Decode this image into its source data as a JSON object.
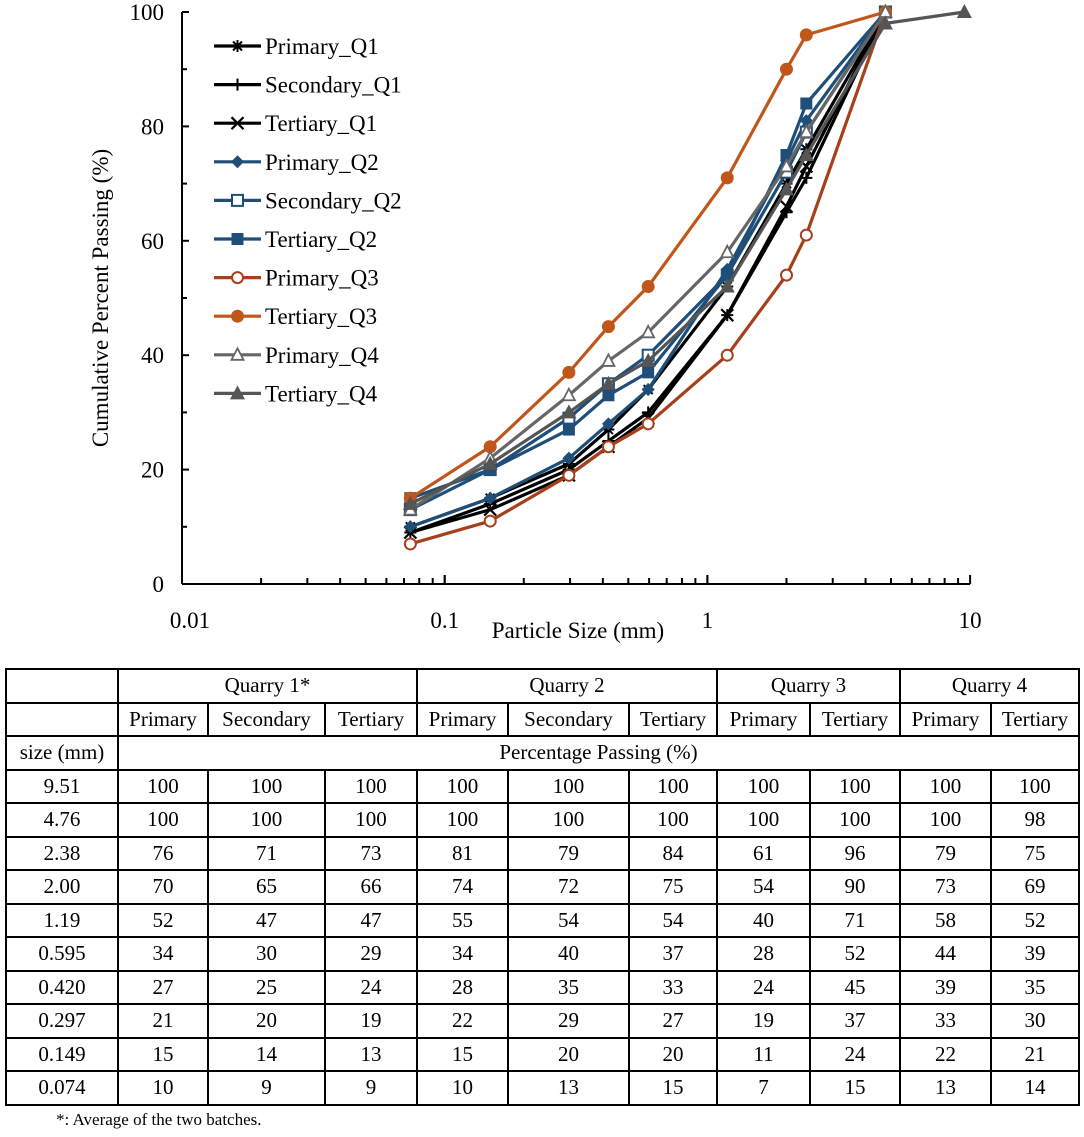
{
  "chart_data": {
    "type": "line",
    "xlabel": "Particle Size (mm)",
    "ylabel": "Cumulative Percent Passing (%)",
    "x_scale": "log",
    "xlim": [
      0.01,
      10
    ],
    "ylim": [
      0,
      100
    ],
    "x_ticks": [
      "0.01",
      "0.1",
      "1",
      "10"
    ],
    "y_ticks": [
      "0",
      "20",
      "40",
      "60",
      "80",
      "100"
    ],
    "grid": false,
    "legend_position": "top-left",
    "series": [
      {
        "name": "Primary_Q1",
        "color": "#000000",
        "marker": "asterisk",
        "x": [
          4.76,
          2.38,
          2.0,
          1.19,
          0.595,
          0.42,
          0.297,
          0.149,
          0.074
        ],
        "y": [
          100,
          76,
          70,
          52,
          34,
          27,
          21,
          15,
          10
        ]
      },
      {
        "name": "Secondary_Q1",
        "color": "#000000",
        "marker": "plus",
        "x": [
          4.76,
          2.38,
          2.0,
          1.19,
          0.595,
          0.42,
          0.297,
          0.149,
          0.074
        ],
        "y": [
          100,
          71,
          65,
          47,
          30,
          25,
          20,
          14,
          9
        ]
      },
      {
        "name": "Tertiary_Q1",
        "color": "#000000",
        "marker": "cross",
        "x": [
          4.76,
          2.38,
          2.0,
          1.19,
          0.595,
          0.42,
          0.297,
          0.149,
          0.074
        ],
        "y": [
          100,
          73,
          66,
          47,
          29,
          24,
          19,
          13,
          9
        ]
      },
      {
        "name": "Primary_Q2",
        "color": "#1f4e79",
        "marker": "diamond",
        "x": [
          4.76,
          2.38,
          2.0,
          1.19,
          0.595,
          0.42,
          0.297,
          0.149,
          0.074
        ],
        "y": [
          100,
          81,
          74,
          55,
          34,
          28,
          22,
          15,
          10
        ]
      },
      {
        "name": "Secondary_Q2",
        "color": "#1f4e79",
        "marker": "square-open",
        "x": [
          4.76,
          2.38,
          2.0,
          1.19,
          0.595,
          0.42,
          0.297,
          0.149,
          0.074
        ],
        "y": [
          100,
          79,
          72,
          54,
          40,
          35,
          29,
          20,
          13
        ]
      },
      {
        "name": "Tertiary_Q2",
        "color": "#1f4e79",
        "marker": "square",
        "x": [
          4.76,
          2.38,
          2.0,
          1.19,
          0.595,
          0.42,
          0.297,
          0.149,
          0.074
        ],
        "y": [
          100,
          84,
          75,
          54,
          37,
          33,
          27,
          20,
          15
        ]
      },
      {
        "name": "Primary_Q3",
        "color": "#a5401a",
        "marker": "circle-open",
        "x": [
          4.76,
          2.38,
          2.0,
          1.19,
          0.595,
          0.42,
          0.297,
          0.149,
          0.074
        ],
        "y": [
          100,
          61,
          54,
          40,
          28,
          24,
          19,
          11,
          7
        ]
      },
      {
        "name": "Tertiary_Q3",
        "color": "#c0561a",
        "marker": "circle",
        "x": [
          4.76,
          2.38,
          2.0,
          1.19,
          0.595,
          0.42,
          0.297,
          0.149,
          0.074
        ],
        "y": [
          100,
          96,
          90,
          71,
          52,
          45,
          37,
          24,
          15
        ]
      },
      {
        "name": "Primary_Q4",
        "color": "#666666",
        "marker": "triangle-open",
        "x": [
          4.76,
          2.38,
          2.0,
          1.19,
          0.595,
          0.42,
          0.297,
          0.149,
          0.074
        ],
        "y": [
          100,
          79,
          73,
          58,
          44,
          39,
          33,
          22,
          13
        ]
      },
      {
        "name": "Tertiary_Q4",
        "color": "#555555",
        "marker": "triangle",
        "x": [
          9.51,
          4.76,
          2.38,
          2.0,
          1.19,
          0.595,
          0.42,
          0.297,
          0.149,
          0.074
        ],
        "y": [
          100,
          98,
          75,
          69,
          52,
          39,
          35,
          30,
          21,
          14
        ]
      }
    ]
  },
  "table": {
    "groups": [
      "Quarry 1*",
      "Quarry 2",
      "Quarry 3",
      "Quarry 4"
    ],
    "subheaders": [
      "Primary",
      "Secondary",
      "Tertiary",
      "Primary",
      "Secondary",
      "Tertiary",
      "Primary",
      "Tertiary",
      "Primary",
      "Tertiary"
    ],
    "size_header": "size (mm)",
    "unit_header": "Percentage Passing (%)",
    "rows": [
      [
        "9.51",
        "100",
        "100",
        "100",
        "100",
        "100",
        "100",
        "100",
        "100",
        "100",
        "100"
      ],
      [
        "4.76",
        "100",
        "100",
        "100",
        "100",
        "100",
        "100",
        "100",
        "100",
        "100",
        "98"
      ],
      [
        "2.38",
        "76",
        "71",
        "73",
        "81",
        "79",
        "84",
        "61",
        "96",
        "79",
        "75"
      ],
      [
        "2.00",
        "70",
        "65",
        "66",
        "74",
        "72",
        "75",
        "54",
        "90",
        "73",
        "69"
      ],
      [
        "1.19",
        "52",
        "47",
        "47",
        "55",
        "54",
        "54",
        "40",
        "71",
        "58",
        "52"
      ],
      [
        "0.595",
        "34",
        "30",
        "29",
        "34",
        "40",
        "37",
        "28",
        "52",
        "44",
        "39"
      ],
      [
        "0.420",
        "27",
        "25",
        "24",
        "28",
        "35",
        "33",
        "24",
        "45",
        "39",
        "35"
      ],
      [
        "0.297",
        "21",
        "20",
        "19",
        "22",
        "29",
        "27",
        "19",
        "37",
        "33",
        "30"
      ],
      [
        "0.149",
        "15",
        "14",
        "13",
        "15",
        "20",
        "20",
        "11",
        "24",
        "22",
        "21"
      ],
      [
        "0.074",
        "10",
        "9",
        "9",
        "10",
        "13",
        "15",
        "7",
        "15",
        "13",
        "14"
      ]
    ],
    "footnote": "*: Average of the two batches."
  }
}
